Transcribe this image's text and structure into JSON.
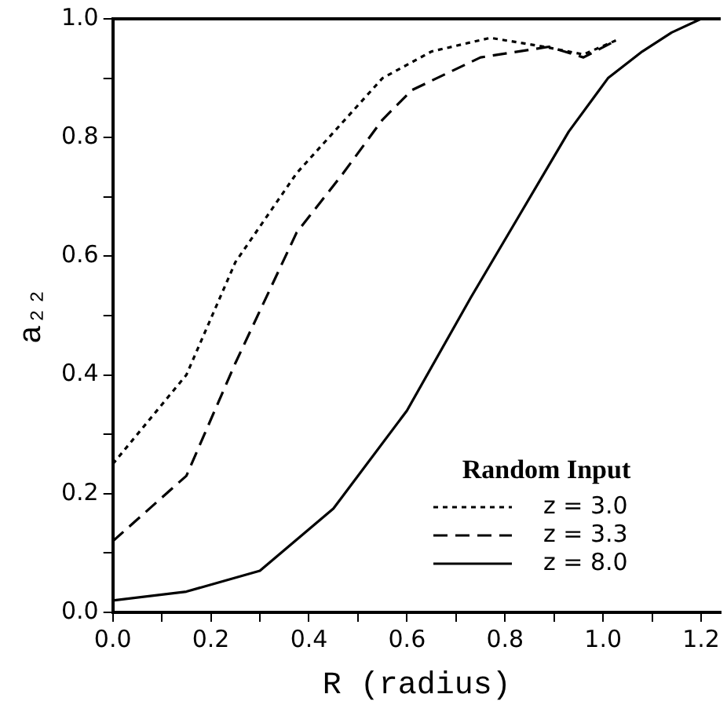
{
  "chart_data": {
    "type": "line",
    "xlabel": "R (radius)",
    "ylabel": "a₂₂",
    "legend_title": "Random Input",
    "legend": "bottom right",
    "xlim": [
      0,
      1.24
    ],
    "xticks": [
      {
        "value": 0,
        "label": "0.0"
      },
      {
        "value": 0.1,
        "label": null
      },
      {
        "value": 0.2,
        "label": "0.2"
      },
      {
        "value": 0.3,
        "label": null
      },
      {
        "value": 0.4,
        "label": "0.4"
      },
      {
        "value": 0.5,
        "label": null
      },
      {
        "value": 0.6,
        "label": "0.6"
      },
      {
        "value": 0.7,
        "label": null
      },
      {
        "value": 0.8,
        "label": "0.8"
      },
      {
        "value": 0.9,
        "label": null
      },
      {
        "value": 1,
        "label": "1.0"
      },
      {
        "value": 1.1,
        "label": null
      },
      {
        "value": 1.2,
        "label": "1.2"
      }
    ],
    "ylim": [
      0,
      1
    ],
    "yticks": [
      {
        "value": 0,
        "label": "0.0"
      },
      {
        "value": 0.1,
        "label": null
      },
      {
        "value": 0.2,
        "label": "0.2"
      },
      {
        "value": 0.3,
        "label": null
      },
      {
        "value": 0.4,
        "label": "0.4"
      },
      {
        "value": 0.5,
        "label": null
      },
      {
        "value": 0.6,
        "label": "0.6"
      },
      {
        "value": 0.7,
        "label": null
      },
      {
        "value": 0.8,
        "label": "0.8"
      },
      {
        "value": 0.9,
        "label": null
      },
      {
        "value": 1,
        "label": "1.0"
      }
    ],
    "grid": false,
    "marker": "none",
    "series": [
      {
        "name": "z = 3.0",
        "color": "#000000",
        "line_style": "dotted",
        "x": [
          0,
          0.15,
          0.25,
          0.375,
          0.55,
          0.65,
          0.77,
          0.88,
          0.96,
          1.03
        ],
        "values": [
          0.25,
          0.4,
          0.59,
          0.74,
          0.9,
          0.945,
          0.968,
          0.953,
          0.94,
          0.965
        ]
      },
      {
        "name": "z = 3.3",
        "color": "#000000",
        "line_style": "dashed",
        "x": [
          0,
          0.15,
          0.25,
          0.375,
          0.47,
          0.55,
          0.61,
          0.75,
          0.89,
          0.96,
          1.03
        ],
        "values": [
          0.12,
          0.23,
          0.42,
          0.64,
          0.74,
          0.83,
          0.88,
          0.935,
          0.953,
          0.935,
          0.965
        ]
      },
      {
        "name": "z = 8.0",
        "color": "#000000",
        "line_style": "solid",
        "x": [
          0,
          0.15,
          0.3,
          0.45,
          0.6,
          0.73,
          0.83,
          0.93,
          1.01,
          1.08,
          1.14,
          1.2
        ],
        "values": [
          0.02,
          0.035,
          0.07,
          0.175,
          0.34,
          0.53,
          0.67,
          0.81,
          0.9,
          0.945,
          0.977,
          1.0
        ]
      }
    ]
  }
}
